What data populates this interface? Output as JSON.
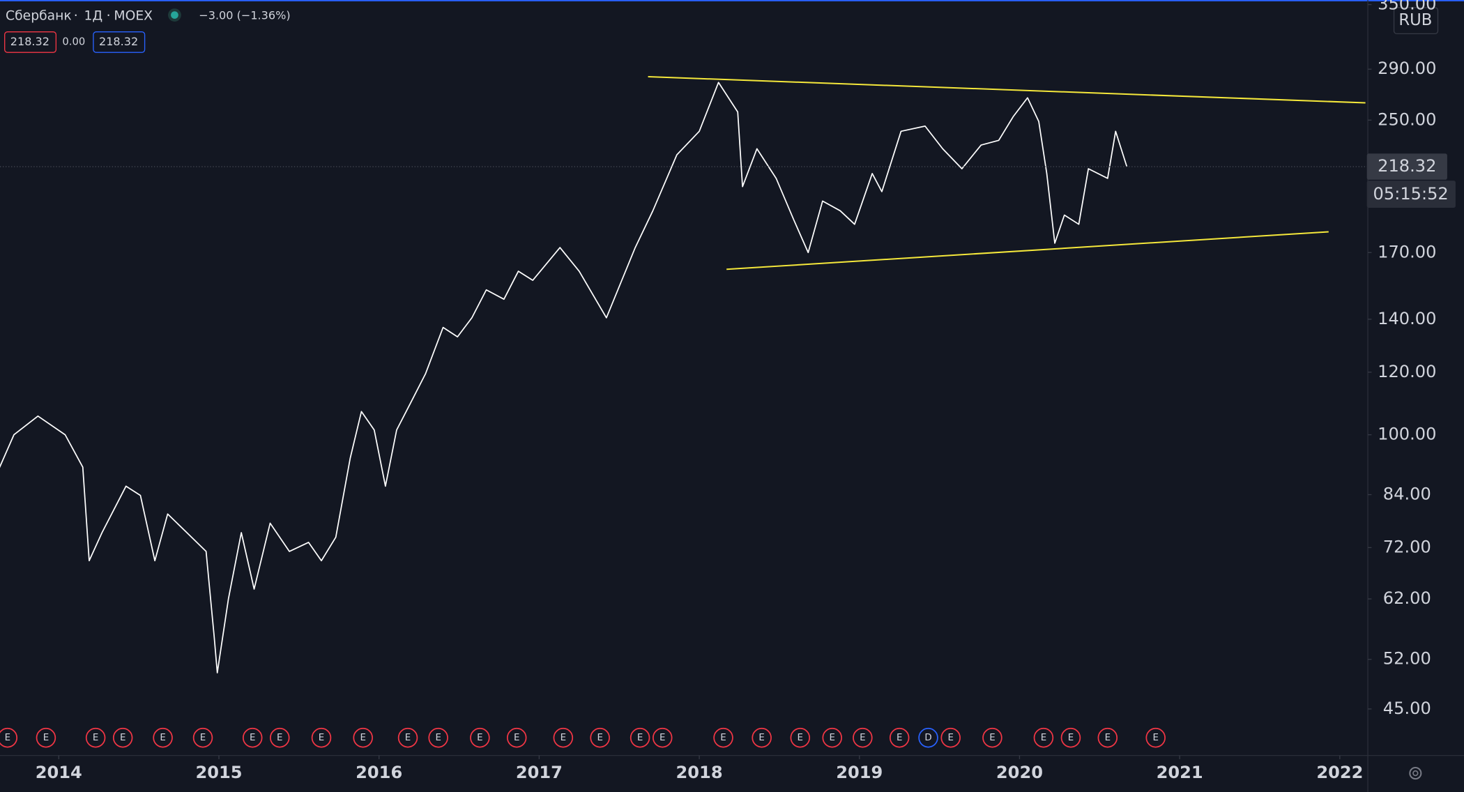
{
  "chart_data": {
    "type": "line",
    "symbol": "Сбербанк",
    "interval": "1Д",
    "exchange": "MOEX",
    "change": "−3.00 (−1.36%)",
    "legend_values": [
      "218.32",
      "0.00",
      "218.32"
    ],
    "currency": "RUB",
    "last_price": 218.32,
    "countdown": "05:15:52",
    "color": "#ffffff",
    "log_scale": true,
    "grid": false,
    "x": [
      2013.63,
      2013.72,
      2013.87,
      2014.04,
      2014.15,
      2014.19,
      2014.27,
      2014.42,
      2014.51,
      2014.6,
      2014.68,
      2014.8,
      2014.92,
      2014.97,
      2014.99,
      2015.06,
      2015.14,
      2015.22,
      2015.32,
      2015.44,
      2015.56,
      2015.64,
      2015.73,
      2015.82,
      2015.89,
      2015.97,
      2016.04,
      2016.11,
      2016.2,
      2016.29,
      2016.4,
      2016.49,
      2016.58,
      2016.67,
      2016.78,
      2016.87,
      2016.96,
      2017.13,
      2017.25,
      2017.42,
      2017.6,
      2017.71,
      2017.86,
      2018.0,
      2018.12,
      2018.24,
      2018.27,
      2018.36,
      2018.48,
      2018.59,
      2018.68,
      2018.77,
      2018.88,
      2018.97,
      2019.08,
      2019.14,
      2019.26,
      2019.41,
      2019.52,
      2019.64,
      2019.76,
      2019.87,
      2019.96,
      2020.05,
      2020.12,
      2020.17,
      2020.22,
      2020.28,
      2020.37,
      2020.43,
      2020.55,
      2020.6,
      2020.67
    ],
    "values": [
      90.9,
      100,
      105.6,
      100,
      91,
      69.3,
      75.2,
      86.1,
      83.8,
      69.3,
      79.4,
      75.2,
      71.2,
      55.7,
      50,
      62.1,
      75.2,
      63.8,
      77.3,
      71.2,
      73.1,
      69.3,
      74.2,
      93.4,
      107,
      101.4,
      86.1,
      101.4,
      110,
      119.4,
      136.7,
      133,
      140.6,
      152.5,
      148.4,
      161,
      156.8,
      172.5,
      161,
      140.6,
      172.5,
      192,
      226,
      242,
      279,
      256,
      206,
      230,
      211,
      187,
      170,
      197.5,
      192,
      184.6,
      214,
      203,
      242,
      245.7,
      230,
      217,
      232.5,
      235.7,
      252.5,
      266.8,
      249,
      214,
      174.7,
      189.6,
      184.6,
      217,
      211,
      242,
      218.32
    ],
    "trendlines": [
      {
        "color": "#f5e83b",
        "x": [
          2017.68,
          2022.16
        ],
        "y": [
          283.7,
          262.9
        ]
      },
      {
        "color": "#f5e83b",
        "x": [
          2018.17,
          2021.93
        ],
        "y": [
          161.9,
          180.6
        ]
      }
    ],
    "events": [
      {
        "x": 2013.68,
        "label": "E"
      },
      {
        "x": 2013.92,
        "label": "E"
      },
      {
        "x": 2014.23,
        "label": "E"
      },
      {
        "x": 2014.4,
        "label": "E"
      },
      {
        "x": 2014.65,
        "label": "E"
      },
      {
        "x": 2014.9,
        "label": "E"
      },
      {
        "x": 2015.21,
        "label": "E"
      },
      {
        "x": 2015.38,
        "label": "E"
      },
      {
        "x": 2015.64,
        "label": "E"
      },
      {
        "x": 2015.9,
        "label": "E"
      },
      {
        "x": 2016.18,
        "label": "E"
      },
      {
        "x": 2016.37,
        "label": "E"
      },
      {
        "x": 2016.63,
        "label": "E"
      },
      {
        "x": 2016.86,
        "label": "E"
      },
      {
        "x": 2017.15,
        "label": "E"
      },
      {
        "x": 2017.38,
        "label": "E"
      },
      {
        "x": 2017.63,
        "label": "E"
      },
      {
        "x": 2017.77,
        "label": "E"
      },
      {
        "x": 2018.15,
        "label": "E"
      },
      {
        "x": 2018.39,
        "label": "E"
      },
      {
        "x": 2018.63,
        "label": "E"
      },
      {
        "x": 2018.83,
        "label": "E"
      },
      {
        "x": 2019.02,
        "label": "E"
      },
      {
        "x": 2019.25,
        "label": "E"
      },
      {
        "x": 2019.43,
        "label": "D"
      },
      {
        "x": 2019.57,
        "label": "E"
      },
      {
        "x": 2019.83,
        "label": "E"
      },
      {
        "x": 2020.15,
        "label": "E"
      },
      {
        "x": 2020.32,
        "label": "E"
      },
      {
        "x": 2020.55,
        "label": "E"
      },
      {
        "x": 2020.85,
        "label": "E"
      }
    ],
    "xlim": [
      2013.633,
      2022.175
    ],
    "xticks": [
      2014,
      2015,
      2016,
      2017,
      2018,
      2019,
      2020,
      2021,
      2022
    ],
    "ylim": [
      39.3,
      354.6
    ],
    "yticks": [
      {
        "value": 45,
        "label": "45.00"
      },
      {
        "value": 52,
        "label": "52.00"
      },
      {
        "value": 62,
        "label": "62.00"
      },
      {
        "value": 72,
        "label": "72.00"
      },
      {
        "value": 84,
        "label": "84.00"
      },
      {
        "value": 100,
        "label": "100.00"
      },
      {
        "value": 120,
        "label": "120.00"
      },
      {
        "value": 140,
        "label": "140.00"
      },
      {
        "value": 170,
        "label": "170.00"
      },
      {
        "value": 250,
        "label": "250.00"
      },
      {
        "value": 290,
        "label": "290.00"
      },
      {
        "value": 350,
        "label": "350.00"
      }
    ]
  }
}
